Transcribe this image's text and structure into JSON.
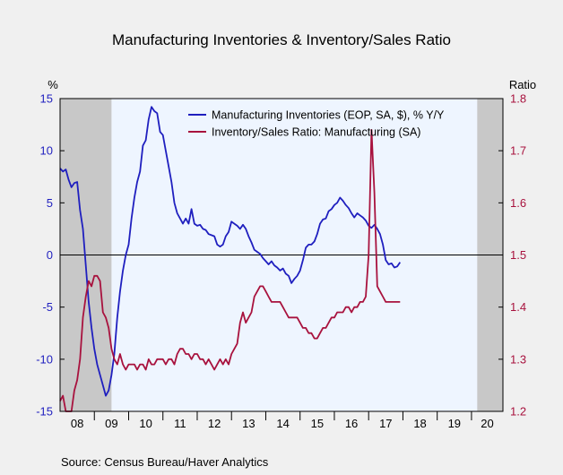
{
  "chart_data": {
    "type": "line",
    "title": "Manufacturing Inventories & Inventory/Sales Ratio",
    "source": "Source:  Census Bureau/Haver Analytics",
    "left_axis": {
      "unit_label": "%",
      "min": -15,
      "max": 15,
      "ticks": [
        -15,
        -10,
        -5,
        0,
        5,
        10,
        15
      ],
      "color": "#1f1fbf"
    },
    "right_axis": {
      "unit_label": "Ratio",
      "min": 1.2,
      "max": 1.8,
      "ticks": [
        1.2,
        1.3,
        1.4,
        1.5,
        1.6,
        1.7,
        1.8
      ],
      "tick_labels": [
        "1.2",
        "1.3",
        "1.4",
        "1.5",
        "1.6",
        "1.7",
        "1.8"
      ],
      "color": "#a8123e"
    },
    "x_axis": {
      "start": 2008.0,
      "end": 2020.917,
      "tick_labels": [
        "08",
        "09",
        "10",
        "11",
        "12",
        "13",
        "14",
        "15",
        "16",
        "17",
        "18",
        "19",
        "20"
      ]
    },
    "recessions": [
      [
        2008.0,
        2009.5
      ],
      [
        2020.167,
        2020.917
      ]
    ],
    "zero_line": 0,
    "legend": {
      "position": "top-center",
      "entries": [
        "Manufacturing Inventories (EOP, SA, $), % Y/Y",
        "Inventory/Sales Ratio: Manufacturing (SA)"
      ]
    },
    "series": [
      {
        "name": "Manufacturing Inventories (EOP, SA, $), % Y/Y",
        "axis": "left",
        "color": "#1f1fbf",
        "points": [
          [
            2008.0,
            8.3
          ],
          [
            2008.083,
            8.0
          ],
          [
            2008.167,
            8.2
          ],
          [
            2008.25,
            7.2
          ],
          [
            2008.333,
            6.5
          ],
          [
            2008.417,
            6.9
          ],
          [
            2008.5,
            7.0
          ],
          [
            2008.583,
            4.3
          ],
          [
            2008.667,
            2.5
          ],
          [
            2008.75,
            -1.0
          ],
          [
            2008.833,
            -4.5
          ],
          [
            2008.917,
            -7.0
          ],
          [
            2009.0,
            -9.0
          ],
          [
            2009.083,
            -10.5
          ],
          [
            2009.167,
            -11.5
          ],
          [
            2009.25,
            -12.5
          ],
          [
            2009.333,
            -13.5
          ],
          [
            2009.417,
            -13.0
          ],
          [
            2009.5,
            -11.5
          ],
          [
            2009.583,
            -9.5
          ],
          [
            2009.667,
            -6.0
          ],
          [
            2009.75,
            -3.5
          ],
          [
            2009.833,
            -1.5
          ],
          [
            2009.917,
            0.0
          ],
          [
            2010.0,
            1.0
          ],
          [
            2010.083,
            3.5
          ],
          [
            2010.167,
            5.5
          ],
          [
            2010.25,
            7.0
          ],
          [
            2010.333,
            8.0
          ],
          [
            2010.417,
            10.5
          ],
          [
            2010.5,
            11.0
          ],
          [
            2010.583,
            13.0
          ],
          [
            2010.667,
            14.2
          ],
          [
            2010.75,
            13.8
          ],
          [
            2010.833,
            13.6
          ],
          [
            2010.917,
            11.8
          ],
          [
            2011.0,
            11.5
          ],
          [
            2011.083,
            10.0
          ],
          [
            2011.167,
            8.5
          ],
          [
            2011.25,
            7.0
          ],
          [
            2011.333,
            5.0
          ],
          [
            2011.417,
            4.0
          ],
          [
            2011.5,
            3.5
          ],
          [
            2011.583,
            3.0
          ],
          [
            2011.667,
            3.5
          ],
          [
            2011.75,
            3.0
          ],
          [
            2011.833,
            4.4
          ],
          [
            2011.917,
            3.0
          ],
          [
            2012.0,
            2.8
          ],
          [
            2012.083,
            2.9
          ],
          [
            2012.167,
            2.5
          ],
          [
            2012.25,
            2.4
          ],
          [
            2012.333,
            2.0
          ],
          [
            2012.417,
            1.9
          ],
          [
            2012.5,
            1.8
          ],
          [
            2012.583,
            1.0
          ],
          [
            2012.667,
            0.8
          ],
          [
            2012.75,
            1.0
          ],
          [
            2012.833,
            1.8
          ],
          [
            2012.917,
            2.2
          ],
          [
            2013.0,
            3.2
          ],
          [
            2013.083,
            3.0
          ],
          [
            2013.167,
            2.8
          ],
          [
            2013.25,
            2.5
          ],
          [
            2013.333,
            2.9
          ],
          [
            2013.417,
            2.5
          ],
          [
            2013.5,
            1.8
          ],
          [
            2013.583,
            1.2
          ],
          [
            2013.667,
            0.5
          ],
          [
            2013.75,
            0.3
          ],
          [
            2013.833,
            0.1
          ],
          [
            2013.917,
            -0.3
          ],
          [
            2014.0,
            -0.6
          ],
          [
            2014.083,
            -0.9
          ],
          [
            2014.167,
            -0.6
          ],
          [
            2014.25,
            -1.0
          ],
          [
            2014.333,
            -1.2
          ],
          [
            2014.417,
            -1.5
          ],
          [
            2014.5,
            -1.3
          ],
          [
            2014.583,
            -1.8
          ],
          [
            2014.667,
            -2.0
          ],
          [
            2014.75,
            -2.7
          ],
          [
            2014.833,
            -2.3
          ],
          [
            2014.917,
            -2.0
          ],
          [
            2015.0,
            -1.5
          ],
          [
            2015.083,
            -0.5
          ],
          [
            2015.167,
            0.7
          ],
          [
            2015.25,
            1.0
          ],
          [
            2015.333,
            1.0
          ],
          [
            2015.417,
            1.3
          ],
          [
            2015.5,
            2.0
          ],
          [
            2015.583,
            3.0
          ],
          [
            2015.667,
            3.4
          ],
          [
            2015.75,
            3.5
          ],
          [
            2015.833,
            4.2
          ],
          [
            2015.917,
            4.4
          ],
          [
            2016.0,
            4.8
          ],
          [
            2016.083,
            5.0
          ],
          [
            2016.167,
            5.5
          ],
          [
            2016.25,
            5.2
          ],
          [
            2016.333,
            4.8
          ],
          [
            2016.417,
            4.5
          ],
          [
            2016.5,
            4.0
          ],
          [
            2016.583,
            3.6
          ],
          [
            2016.667,
            4.0
          ],
          [
            2016.75,
            3.8
          ],
          [
            2016.833,
            3.6
          ],
          [
            2016.917,
            3.3
          ],
          [
            2017.0,
            2.8
          ],
          [
            2017.083,
            2.6
          ],
          [
            2017.167,
            2.9
          ],
          [
            2017.25,
            2.5
          ],
          [
            2017.333,
            2.0
          ],
          [
            2017.417,
            1.0
          ],
          [
            2017.5,
            -0.5
          ],
          [
            2017.583,
            -0.9
          ],
          [
            2017.667,
            -0.8
          ],
          [
            2017.75,
            -1.2
          ],
          [
            2017.833,
            -1.1
          ],
          [
            2017.917,
            -0.7
          ]
        ]
      },
      {
        "name": "Inventory/Sales Ratio: Manufacturing (SA)",
        "axis": "right",
        "color": "#a8123e",
        "points": [
          [
            2008.0,
            1.22
          ],
          [
            2008.083,
            1.23
          ],
          [
            2008.167,
            1.2
          ],
          [
            2008.25,
            1.2
          ],
          [
            2008.333,
            1.2
          ],
          [
            2008.417,
            1.24
          ],
          [
            2008.5,
            1.26
          ],
          [
            2008.583,
            1.3
          ],
          [
            2008.667,
            1.38
          ],
          [
            2008.75,
            1.42
          ],
          [
            2008.833,
            1.45
          ],
          [
            2008.917,
            1.44
          ],
          [
            2009.0,
            1.46
          ],
          [
            2009.083,
            1.46
          ],
          [
            2009.167,
            1.45
          ],
          [
            2009.25,
            1.39
          ],
          [
            2009.333,
            1.38
          ],
          [
            2009.417,
            1.36
          ],
          [
            2009.5,
            1.32
          ],
          [
            2009.583,
            1.3
          ],
          [
            2009.667,
            1.29
          ],
          [
            2009.75,
            1.31
          ],
          [
            2009.833,
            1.29
          ],
          [
            2009.917,
            1.28
          ],
          [
            2010.0,
            1.29
          ],
          [
            2010.083,
            1.29
          ],
          [
            2010.167,
            1.29
          ],
          [
            2010.25,
            1.28
          ],
          [
            2010.333,
            1.29
          ],
          [
            2010.417,
            1.29
          ],
          [
            2010.5,
            1.28
          ],
          [
            2010.583,
            1.3
          ],
          [
            2010.667,
            1.29
          ],
          [
            2010.75,
            1.29
          ],
          [
            2010.833,
            1.3
          ],
          [
            2010.917,
            1.3
          ],
          [
            2011.0,
            1.3
          ],
          [
            2011.083,
            1.29
          ],
          [
            2011.167,
            1.3
          ],
          [
            2011.25,
            1.3
          ],
          [
            2011.333,
            1.29
          ],
          [
            2011.417,
            1.31
          ],
          [
            2011.5,
            1.32
          ],
          [
            2011.583,
            1.32
          ],
          [
            2011.667,
            1.31
          ],
          [
            2011.75,
            1.31
          ],
          [
            2011.833,
            1.3
          ],
          [
            2011.917,
            1.31
          ],
          [
            2012.0,
            1.31
          ],
          [
            2012.083,
            1.3
          ],
          [
            2012.167,
            1.3
          ],
          [
            2012.25,
            1.29
          ],
          [
            2012.333,
            1.3
          ],
          [
            2012.417,
            1.29
          ],
          [
            2012.5,
            1.28
          ],
          [
            2012.583,
            1.29
          ],
          [
            2012.667,
            1.3
          ],
          [
            2012.75,
            1.29
          ],
          [
            2012.833,
            1.3
          ],
          [
            2012.917,
            1.29
          ],
          [
            2013.0,
            1.31
          ],
          [
            2013.083,
            1.32
          ],
          [
            2013.167,
            1.33
          ],
          [
            2013.25,
            1.37
          ],
          [
            2013.333,
            1.39
          ],
          [
            2013.417,
            1.37
          ],
          [
            2013.5,
            1.38
          ],
          [
            2013.583,
            1.39
          ],
          [
            2013.667,
            1.42
          ],
          [
            2013.75,
            1.43
          ],
          [
            2013.833,
            1.44
          ],
          [
            2013.917,
            1.44
          ],
          [
            2014.0,
            1.43
          ],
          [
            2014.083,
            1.42
          ],
          [
            2014.167,
            1.41
          ],
          [
            2014.25,
            1.41
          ],
          [
            2014.333,
            1.41
          ],
          [
            2014.417,
            1.41
          ],
          [
            2014.5,
            1.4
          ],
          [
            2014.583,
            1.39
          ],
          [
            2014.667,
            1.38
          ],
          [
            2014.75,
            1.38
          ],
          [
            2014.833,
            1.38
          ],
          [
            2014.917,
            1.38
          ],
          [
            2015.0,
            1.37
          ],
          [
            2015.083,
            1.36
          ],
          [
            2015.167,
            1.36
          ],
          [
            2015.25,
            1.35
          ],
          [
            2015.333,
            1.35
          ],
          [
            2015.417,
            1.34
          ],
          [
            2015.5,
            1.34
          ],
          [
            2015.583,
            1.35
          ],
          [
            2015.667,
            1.36
          ],
          [
            2015.75,
            1.36
          ],
          [
            2015.833,
            1.37
          ],
          [
            2015.917,
            1.38
          ],
          [
            2016.0,
            1.38
          ],
          [
            2016.083,
            1.39
          ],
          [
            2016.167,
            1.39
          ],
          [
            2016.25,
            1.39
          ],
          [
            2016.333,
            1.4
          ],
          [
            2016.417,
            1.4
          ],
          [
            2016.5,
            1.39
          ],
          [
            2016.583,
            1.4
          ],
          [
            2016.667,
            1.4
          ],
          [
            2016.75,
            1.41
          ],
          [
            2016.833,
            1.41
          ],
          [
            2016.917,
            1.42
          ],
          [
            2017.0,
            1.5
          ],
          [
            2017.083,
            1.74
          ],
          [
            2017.167,
            1.62
          ],
          [
            2017.25,
            1.44
          ],
          [
            2017.333,
            1.43
          ],
          [
            2017.417,
            1.42
          ],
          [
            2017.5,
            1.41
          ],
          [
            2017.583,
            1.41
          ],
          [
            2017.667,
            1.41
          ],
          [
            2017.75,
            1.41
          ],
          [
            2017.833,
            1.41
          ],
          [
            2017.917,
            1.41
          ]
        ]
      }
    ]
  }
}
